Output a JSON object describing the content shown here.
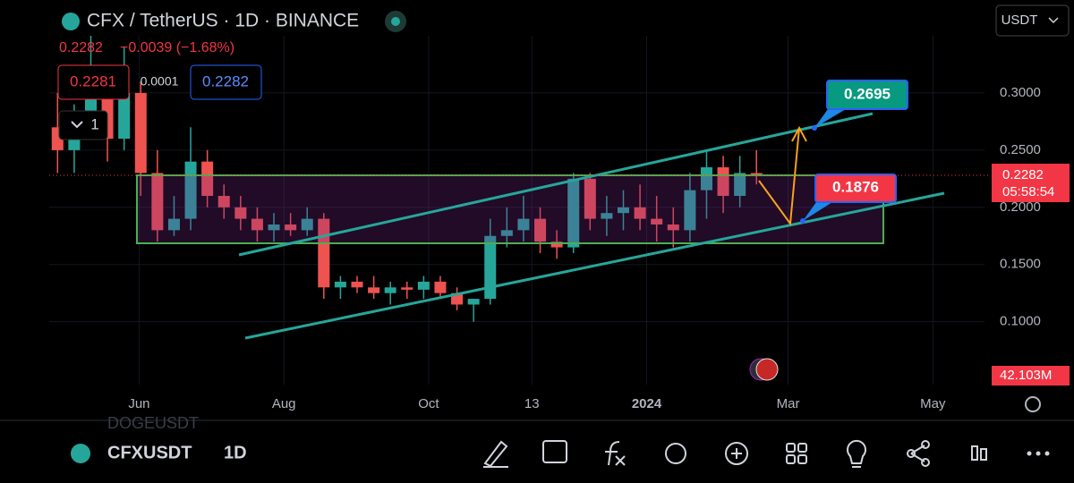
{
  "header": {
    "title": "CFX / TetherUS · 1D · BINANCE",
    "last": "0.2282",
    "change": "−0.0039 (−1.68%)",
    "bid": "0.2281",
    "spread": "0.0001",
    "ask": "0.2282",
    "collapse_count": "1",
    "currency": "USDT"
  },
  "price_tag": {
    "price": "0.2282",
    "countdown": "05:58:54"
  },
  "volume_tag": "42.103M",
  "annotations": {
    "target": "0.2695",
    "support": "0.1876"
  },
  "chart_data": {
    "type": "candlestick",
    "open": [
      0.27,
      0.25,
      0.28,
      0.3,
      0.26,
      0.3,
      0.23,
      0.18,
      0.19,
      0.24,
      0.21,
      0.2,
      0.19,
      0.18,
      0.185,
      0.18,
      0.19,
      0.13,
      0.135,
      0.13,
      0.125,
      0.13,
      0.128,
      0.135,
      0.125,
      0.115,
      0.12,
      0.175,
      0.18,
      0.19,
      0.17,
      0.165,
      0.225,
      0.19,
      0.195,
      0.2,
      0.19,
      0.185,
      0.18,
      0.215,
      0.235,
      0.21,
      0.23
    ],
    "high": [
      0.3,
      0.29,
      0.35,
      0.32,
      0.34,
      0.31,
      0.25,
      0.21,
      0.27,
      0.25,
      0.22,
      0.21,
      0.2,
      0.195,
      0.195,
      0.2,
      0.195,
      0.14,
      0.14,
      0.14,
      0.135,
      0.135,
      0.14,
      0.14,
      0.13,
      0.12,
      0.19,
      0.2,
      0.21,
      0.2,
      0.18,
      0.23,
      0.23,
      0.21,
      0.215,
      0.22,
      0.21,
      0.2,
      0.23,
      0.25,
      0.245,
      0.245,
      0.25
    ],
    "low": [
      0.23,
      0.23,
      0.26,
      0.24,
      0.25,
      0.21,
      0.17,
      0.175,
      0.18,
      0.2,
      0.19,
      0.18,
      0.17,
      0.17,
      0.175,
      0.175,
      0.12,
      0.12,
      0.125,
      0.12,
      0.115,
      0.12,
      0.12,
      0.12,
      0.11,
      0.1,
      0.115,
      0.165,
      0.17,
      0.16,
      0.155,
      0.16,
      0.18,
      0.175,
      0.18,
      0.18,
      0.17,
      0.165,
      0.17,
      0.19,
      0.195,
      0.2,
      0.22
    ],
    "close": [
      0.25,
      0.28,
      0.3,
      0.26,
      0.3,
      0.23,
      0.18,
      0.19,
      0.24,
      0.21,
      0.2,
      0.19,
      0.18,
      0.185,
      0.18,
      0.19,
      0.13,
      0.135,
      0.13,
      0.125,
      0.13,
      0.128,
      0.135,
      0.125,
      0.115,
      0.12,
      0.175,
      0.18,
      0.19,
      0.17,
      0.165,
      0.225,
      0.19,
      0.195,
      0.2,
      0.19,
      0.185,
      0.18,
      0.215,
      0.235,
      0.21,
      0.23,
      0.2282
    ],
    "up_color": "#26a69a",
    "down_color": "#ef5350",
    "ylim": [
      0.045,
      0.35
    ],
    "yticks": [
      {
        "value": 0.1,
        "label": "0.1000"
      },
      {
        "value": 0.15,
        "label": "0.1500"
      },
      {
        "value": 0.2,
        "label": "0.2000"
      },
      {
        "value": 0.25,
        "label": "0.2500"
      },
      {
        "value": 0.3,
        "label": "0.3000"
      }
    ],
    "xlim": [
      0,
      56.2
    ],
    "xticks": [
      {
        "value": 5.4,
        "label": "Jun"
      },
      {
        "value": 14.1,
        "label": "Aug"
      },
      {
        "value": 22.8,
        "label": "Oct"
      },
      {
        "value": 29,
        "label": "13"
      },
      {
        "value": 35.9,
        "label": "2024"
      },
      {
        "value": 44.4,
        "label": "Mar"
      },
      {
        "value": 53.1,
        "label": "May"
      }
    ]
  },
  "footer": {
    "symbol": "CFXUSDT",
    "interval": "1D",
    "previous_symbol": "DOGEUSDT"
  }
}
